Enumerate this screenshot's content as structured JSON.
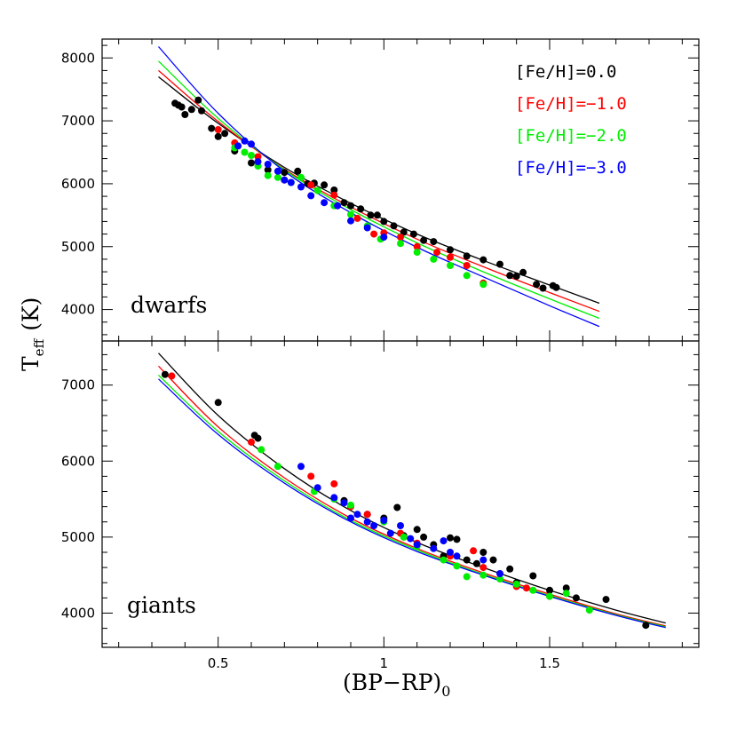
{
  "chart_data": {
    "type": "scatter",
    "xlabel": "(BP−RP)",
    "xlabel_sub": "0",
    "ylabel": "T",
    "ylabel_sub": "eff",
    "ylabel_unit": "(K)",
    "xlim": [
      0.15,
      1.95
    ],
    "x_ticks": [
      0.5,
      1,
      1.5
    ],
    "x_tick_labels": [
      "0.5",
      "1",
      "1.5"
    ],
    "colors": {
      "0.0": "#000000",
      "-1.0": "#ff0000",
      "-2.0": "#00ee00",
      "-3.0": "#0000ff"
    },
    "legend": [
      {
        "key": "0.0",
        "label": "[Fe/H]=0.0"
      },
      {
        "key": "-1.0",
        "label": "[Fe/H]=−1.0"
      },
      {
        "key": "-2.0",
        "label": "[Fe/H]=−2.0"
      },
      {
        "key": "-3.0",
        "label": "[Fe/H]=−3.0"
      }
    ],
    "legend_placement": "top-right",
    "panels": [
      {
        "name": "dwarfs",
        "label": "dwarfs",
        "ylim": [
          3500,
          8300
        ],
        "y_ticks": [
          4000,
          5000,
          6000,
          7000,
          8000
        ],
        "y_tick_labels": [
          "4000",
          "5000",
          "6000",
          "7000",
          "8000"
        ],
        "fits": [
          {
            "key": "0.0",
            "x": [
              0.32,
              0.5,
              0.7,
              0.9,
              1.1,
              1.3,
              1.5,
              1.65
            ],
            "y": [
              7700,
              6960,
              6260,
              5690,
              5200,
              4780,
              4390,
              4100
            ]
          },
          {
            "key": "-1.0",
            "x": [
              0.32,
              0.5,
              0.7,
              0.9,
              1.1,
              1.3,
              1.5,
              1.65
            ],
            "y": [
              7800,
              6990,
              6230,
              5630,
              5120,
              4680,
              4270,
              3970
            ]
          },
          {
            "key": "-2.0",
            "x": [
              0.32,
              0.5,
              0.7,
              0.9,
              1.1,
              1.3,
              1.5,
              1.65
            ],
            "y": [
              7950,
              7040,
              6220,
              5590,
              5060,
              4600,
              4170,
              3860
            ]
          },
          {
            "key": "-3.0",
            "x": [
              0.32,
              0.5,
              0.7,
              0.9,
              1.1,
              1.3,
              1.5,
              1.65
            ],
            "y": [
              8180,
              7120,
              6200,
              5540,
              4990,
              4520,
              4060,
              3730
            ]
          }
        ],
        "points": [
          {
            "key": "0.0",
            "x": [
              0.37,
              0.38,
              0.39,
              0.4,
              0.42,
              0.44,
              0.45,
              0.48,
              0.5,
              0.52,
              0.55,
              0.6,
              0.65,
              0.7,
              0.74,
              0.77,
              0.79,
              0.82,
              0.85,
              0.88,
              0.9,
              0.93,
              0.96,
              0.98,
              1.0,
              1.03,
              1.06,
              1.09,
              1.12,
              1.15,
              1.2,
              1.25,
              1.3,
              1.35,
              1.38,
              1.4,
              1.42,
              1.46,
              1.48,
              1.51,
              1.52
            ],
            "y": [
              7280,
              7250,
              7220,
              7100,
              7180,
              7330,
              7160,
              6880,
              6750,
              6800,
              6520,
              6330,
              6220,
              6180,
              6200,
              6000,
              6010,
              5980,
              5900,
              5700,
              5650,
              5600,
              5500,
              5500,
              5400,
              5330,
              5230,
              5200,
              5100,
              5080,
              4950,
              4850,
              4790,
              4720,
              4540,
              4530,
              4590,
              4400,
              4340,
              4380,
              4350
            ]
          },
          {
            "key": "-1.0",
            "x": [
              0.5,
              0.55,
              0.62,
              0.7,
              0.78,
              0.85,
              0.92,
              0.97,
              1.0,
              1.05,
              1.1,
              1.16,
              1.2,
              1.25,
              1.3
            ],
            "y": [
              6860,
              6650,
              6430,
              6060,
              5980,
              5820,
              5450,
              5200,
              5220,
              5150,
              5000,
              4910,
              4830,
              4700,
              4420
            ]
          },
          {
            "key": "-2.0",
            "x": [
              0.55,
              0.58,
              0.6,
              0.62,
              0.65,
              0.68,
              0.72,
              0.75,
              0.8,
              0.85,
              0.9,
              0.95,
              0.99,
              1.05,
              1.1,
              1.15,
              1.2,
              1.25,
              1.3
            ],
            "y": [
              6570,
              6500,
              6450,
              6280,
              6130,
              6100,
              6020,
              6100,
              5890,
              5650,
              5510,
              5330,
              5120,
              5050,
              4910,
              4800,
              4700,
              4540,
              4400
            ]
          },
          {
            "key": "-3.0",
            "x": [
              0.56,
              0.58,
              0.6,
              0.62,
              0.65,
              0.68,
              0.7,
              0.72,
              0.75,
              0.78,
              0.82,
              0.86,
              0.9,
              0.95,
              1.0
            ],
            "y": [
              6600,
              6680,
              6630,
              6350,
              6310,
              6200,
              6060,
              6020,
              5950,
              5810,
              5700,
              5650,
              5410,
              5300,
              5150
            ]
          }
        ]
      },
      {
        "name": "giants",
        "label": "giants",
        "ylim": [
          3550,
          7580
        ],
        "y_ticks": [
          4000,
          5000,
          6000,
          7000
        ],
        "y_tick_labels": [
          "4000",
          "5000",
          "6000",
          "7000"
        ],
        "fits": [
          {
            "key": "0.0",
            "x": [
              0.32,
              0.5,
              0.7,
              0.9,
              1.1,
              1.3,
              1.5,
              1.7,
              1.85
            ],
            "y": [
              7420,
              6600,
              5900,
              5350,
              4930,
              4600,
              4300,
              4040,
              3870
            ]
          },
          {
            "key": "-1.0",
            "x": [
              0.32,
              0.5,
              0.7,
              0.9,
              1.1,
              1.3,
              1.5,
              1.7,
              1.85
            ],
            "y": [
              7250,
              6450,
              5780,
              5250,
              4850,
              4530,
              4250,
              3990,
              3830
            ]
          },
          {
            "key": "-2.0",
            "x": [
              0.32,
              0.5,
              0.7,
              0.9,
              1.1,
              1.3,
              1.5,
              1.7,
              1.85
            ],
            "y": [
              7130,
              6390,
              5740,
              5220,
              4830,
              4510,
              4230,
              3980,
              3820
            ]
          },
          {
            "key": "-3.0",
            "x": [
              0.32,
              0.5,
              0.7,
              0.9,
              1.1,
              1.3,
              1.5,
              1.7,
              1.85
            ],
            "y": [
              7080,
              6350,
              5710,
              5200,
              4810,
              4500,
              4220,
              3970,
              3810
            ]
          }
        ],
        "points": [
          {
            "key": "0.0",
            "x": [
              0.34,
              0.5,
              0.61,
              0.62,
              0.88,
              0.95,
              1.0,
              1.04,
              1.06,
              1.1,
              1.12,
              1.15,
              1.18,
              1.2,
              1.22,
              1.25,
              1.28,
              1.3,
              1.33,
              1.38,
              1.4,
              1.45,
              1.5,
              1.55,
              1.58,
              1.67,
              1.79
            ],
            "y": [
              7140,
              6770,
              6340,
              6300,
              5480,
              5300,
              5250,
              5390,
              5020,
              5100,
              5000,
              4900,
              4750,
              4990,
              4970,
              4700,
              4650,
              4800,
              4700,
              4580,
              4400,
              4490,
              4300,
              4330,
              4200,
              4180,
              3840
            ]
          },
          {
            "key": "-1.0",
            "x": [
              0.36,
              0.6,
              0.78,
              0.85,
              0.9,
              0.95,
              1.05,
              1.1,
              1.2,
              1.27,
              1.3,
              1.4,
              1.43,
              1.5
            ],
            "y": [
              7120,
              6250,
              5800,
              5700,
              5400,
              5300,
              5050,
              4920,
              4750,
              4820,
              4600,
              4350,
              4330,
              4220
            ]
          },
          {
            "key": "-2.0",
            "x": [
              0.63,
              0.68,
              0.79,
              0.85,
              0.9,
              1.0,
              1.06,
              1.1,
              1.18,
              1.22,
              1.25,
              1.3,
              1.35,
              1.4,
              1.45,
              1.5,
              1.55,
              1.62
            ],
            "y": [
              6150,
              5930,
              5600,
              5500,
              5420,
              5200,
              5000,
              4880,
              4700,
              4620,
              4480,
              4500,
              4450,
              4380,
              4300,
              4220,
              4260,
              4040
            ]
          },
          {
            "key": "-3.0",
            "x": [
              0.75,
              0.8,
              0.85,
              0.88,
              0.9,
              0.92,
              0.95,
              0.97,
              1.0,
              1.02,
              1.05,
              1.08,
              1.1,
              1.15,
              1.18,
              1.2,
              1.22,
              1.3,
              1.35
            ],
            "y": [
              5930,
              5650,
              5520,
              5450,
              5250,
              5300,
              5200,
              5150,
              5220,
              5050,
              5150,
              4980,
              4900,
              4850,
              4950,
              4800,
              4750,
              4700,
              4520
            ]
          }
        ]
      }
    ]
  }
}
